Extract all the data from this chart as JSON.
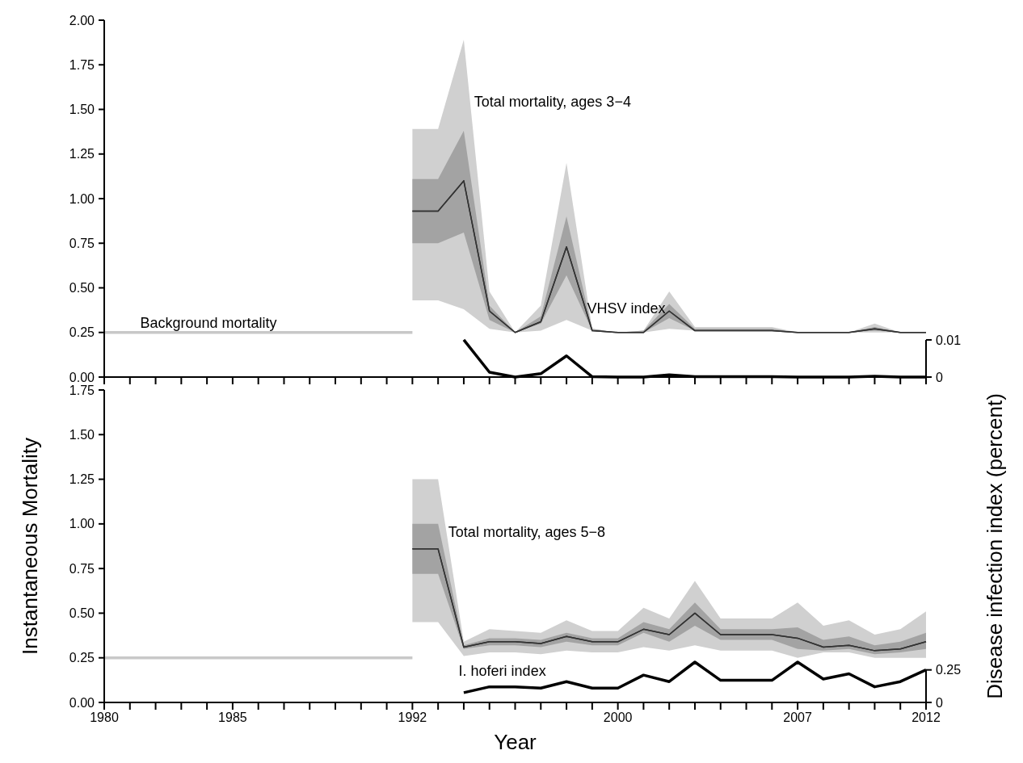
{
  "chart_data": [
    {
      "type": "line",
      "xlim": [
        1980,
        2012
      ],
      "xticks": [
        {
          "value": 1980,
          "label": null
        },
        {
          "value": 1981,
          "label": null
        },
        {
          "value": 1982,
          "label": null
        },
        {
          "value": 1983,
          "label": null
        },
        {
          "value": 1984,
          "label": null
        },
        {
          "value": 1985,
          "label": null
        },
        {
          "value": 1986,
          "label": null
        },
        {
          "value": 1987,
          "label": null
        },
        {
          "value": 1988,
          "label": null
        },
        {
          "value": 1989,
          "label": null
        },
        {
          "value": 1990,
          "label": null
        },
        {
          "value": 1991,
          "label": null
        },
        {
          "value": 1992,
          "label": null
        },
        {
          "value": 1993,
          "label": null
        },
        {
          "value": 1994,
          "label": null
        },
        {
          "value": 1995,
          "label": null
        },
        {
          "value": 1996,
          "label": null
        },
        {
          "value": 1997,
          "label": null
        },
        {
          "value": 1998,
          "label": null
        },
        {
          "value": 1999,
          "label": null
        },
        {
          "value": 2000,
          "label": null
        },
        {
          "value": 2001,
          "label": null
        },
        {
          "value": 2002,
          "label": null
        },
        {
          "value": 2003,
          "label": null
        },
        {
          "value": 2004,
          "label": null
        },
        {
          "value": 2005,
          "label": null
        },
        {
          "value": 2006,
          "label": null
        },
        {
          "value": 2007,
          "label": null
        },
        {
          "value": 2008,
          "label": null
        },
        {
          "value": 2009,
          "label": null
        },
        {
          "value": 2010,
          "label": null
        },
        {
          "value": 2011,
          "label": null
        },
        {
          "value": 2012,
          "label": null
        }
      ],
      "ylim": [
        0,
        2
      ],
      "yticks": [
        {
          "value": 0,
          "label": "0.00"
        },
        {
          "value": 0.25,
          "label": "0.25"
        },
        {
          "value": 0.5,
          "label": "0.50"
        },
        {
          "value": 0.75,
          "label": "0.75"
        },
        {
          "value": 1,
          "label": "1.00"
        },
        {
          "value": 1.25,
          "label": "1.25"
        },
        {
          "value": 1.5,
          "label": "1.50"
        },
        {
          "value": 1.75,
          "label": "1.75"
        },
        {
          "value": 2,
          "label": "2.00"
        }
      ],
      "y2lim": [
        0,
        0.096
      ],
      "y2ticks": [
        0,
        0.01
      ],
      "tick_labels": "y",
      "annotations": [
        {
          "text": "Background mortality",
          "x": 1981.4,
          "y": 0.25
        },
        {
          "text": "Total mortality, ages 3−4",
          "x": 1994.4,
          "y": 1.49
        },
        "VHSV index"
      ],
      "series": [
        {
          "color": "#c8c8c8",
          "x": [
            1980,
            1992
          ],
          "values": [
            0.25,
            0.25
          ]
        },
        {
          "color": "#333333",
          "x": [
            1992,
            1993,
            1994,
            1995,
            1996,
            1997,
            1998,
            1999,
            2000,
            2001,
            2002,
            2003,
            2004,
            2005,
            2006,
            2007,
            2008,
            2009,
            2010,
            2011,
            2012
          ],
          "values": [
            0.93,
            0.93,
            1.1,
            0.37,
            0.25,
            0.31,
            0.73,
            0.26,
            0.25,
            0.25,
            0.37,
            0.26,
            0.26,
            0.26,
            0.26,
            0.25,
            0.25,
            0.25,
            0.27,
            0.25,
            0.25
          ],
          "lower": [
            0.43,
            0.43,
            0.38,
            0.27,
            0.25,
            0.26,
            0.32,
            0.26,
            0.25,
            0.25,
            0.27,
            0.26,
            0.26,
            0.26,
            0.26,
            0.25,
            0.25,
            0.25,
            0.25,
            0.25,
            0.25
          ],
          "upper": [
            1.39,
            1.39,
            1.89,
            0.48,
            0.25,
            0.4,
            1.2,
            0.27,
            0.25,
            0.26,
            0.48,
            0.28,
            0.28,
            0.28,
            0.28,
            0.25,
            0.25,
            0.25,
            0.3,
            0.25,
            0.25
          ]
        },
        {
          "color": "#333333",
          "x": [
            1992,
            1993,
            1994,
            1995,
            1996,
            1997,
            1998,
            1999,
            2000,
            2001,
            2002,
            2003,
            2004,
            2005,
            2006,
            2007,
            2008,
            2009,
            2010,
            2011,
            2012
          ],
          "values": [
            0.93,
            0.93,
            1.1,
            0.37,
            0.25,
            0.31,
            0.73,
            0.26,
            0.25,
            0.25,
            0.37,
            0.26,
            0.26,
            0.26,
            0.26,
            0.25,
            0.25,
            0.25,
            0.27,
            0.25,
            0.25
          ],
          "lower": [
            0.75,
            0.75,
            0.81,
            0.32,
            0.25,
            0.3,
            0.57,
            0.26,
            0.25,
            0.25,
            0.33,
            0.26,
            0.26,
            0.26,
            0.26,
            0.25,
            0.25,
            0.25,
            0.26,
            0.25,
            0.25
          ],
          "upper": [
            1.11,
            1.11,
            1.38,
            0.4,
            0.25,
            0.34,
            0.9,
            0.27,
            0.25,
            0.26,
            0.41,
            0.27,
            0.27,
            0.27,
            0.27,
            0.25,
            0.25,
            0.25,
            0.28,
            0.25,
            0.25
          ]
        },
        {
          "color": "#000000",
          "axis": "y2",
          "x": [
            1994,
            1995,
            1996,
            1997,
            1998,
            1999,
            2000,
            2001,
            2002,
            2003,
            2004,
            2005,
            2006,
            2007,
            2008,
            2009,
            2010,
            2011,
            2012
          ],
          "values": [
            0.01,
            0.0013,
            0,
            0.0009,
            0.0057,
            0.0001,
            0,
            0,
            0.0006,
            0.0001,
            0.0001,
            0.0001,
            0.0001,
            0,
            0,
            0,
            0.0002,
            0,
            0
          ]
        }
      ]
    },
    {
      "type": "line",
      "xlabel": "Year",
      "ylabel": "Instantaneous Mortality",
      "y2label": "Disease infection index (percent)",
      "xlim": [
        1980,
        2012
      ],
      "xticks": [
        {
          "value": 1980,
          "label": "1980"
        },
        {
          "value": 1981,
          "label": null
        },
        {
          "value": 1982,
          "label": null
        },
        {
          "value": 1983,
          "label": null
        },
        {
          "value": 1984,
          "label": null
        },
        {
          "value": 1985,
          "label": "1985"
        },
        {
          "value": 1986,
          "label": null
        },
        {
          "value": 1987,
          "label": null
        },
        {
          "value": 1988,
          "label": null
        },
        {
          "value": 1989,
          "label": null
        },
        {
          "value": 1990,
          "label": null
        },
        {
          "value": 1991,
          "label": null
        },
        {
          "value": 1992,
          "label": "1992"
        },
        {
          "value": 1993,
          "label": null
        },
        {
          "value": 1994,
          "label": null
        },
        {
          "value": 1995,
          "label": null
        },
        {
          "value": 1996,
          "label": null
        },
        {
          "value": 1997,
          "label": null
        },
        {
          "value": 1998,
          "label": null
        },
        {
          "value": 1999,
          "label": null
        },
        {
          "value": 2000,
          "label": "2000"
        },
        {
          "value": 2001,
          "label": null
        },
        {
          "value": 2002,
          "label": null
        },
        {
          "value": 2003,
          "label": null
        },
        {
          "value": 2004,
          "label": null
        },
        {
          "value": 2005,
          "label": null
        },
        {
          "value": 2006,
          "label": null
        },
        {
          "value": 2007,
          "label": "2007"
        },
        {
          "value": 2008,
          "label": null
        },
        {
          "value": 2009,
          "label": null
        },
        {
          "value": 2010,
          "label": null
        },
        {
          "value": 2011,
          "label": null
        },
        {
          "value": 2012,
          "label": "2012"
        }
      ],
      "ylim": [
        0,
        1.75
      ],
      "yticks": [
        {
          "value": 0,
          "label": "0.00"
        },
        {
          "value": 0.25,
          "label": "0.25"
        },
        {
          "value": 0.5,
          "label": "0.50"
        },
        {
          "value": 0.75,
          "label": "0.75"
        },
        {
          "value": 1,
          "label": "1.00"
        },
        {
          "value": 1.25,
          "label": "1.25"
        },
        {
          "value": 1.5,
          "label": "1.50"
        },
        {
          "value": 1.75,
          "label": "1.75"
        }
      ],
      "y2lim": [
        0,
        2.4
      ],
      "y2ticks": [
        0,
        0.25
      ],
      "annotations": [
        {
          "text": "Total mortality, ages 5−8",
          "x": 1993.4,
          "y": 0.9
        },
        "I. hoferi index"
      ],
      "series": [
        {
          "color": "#c8c8c8",
          "x": [
            1980,
            1992
          ],
          "values": [
            0.25,
            0.25
          ]
        },
        {
          "color": "#333333",
          "x": [
            1992,
            1993,
            1994,
            1995,
            1996,
            1997,
            1998,
            1999,
            2000,
            2001,
            2002,
            2003,
            2004,
            2005,
            2006,
            2007,
            2008,
            2009,
            2010,
            2011,
            2012
          ],
          "values": [
            0.86,
            0.86,
            0.31,
            0.34,
            0.34,
            0.33,
            0.37,
            0.34,
            0.34,
            0.41,
            0.38,
            0.5,
            0.38,
            0.38,
            0.38,
            0.36,
            0.31,
            0.32,
            0.29,
            0.3,
            0.34
          ],
          "lower": [
            0.45,
            0.45,
            0.26,
            0.28,
            0.28,
            0.27,
            0.29,
            0.28,
            0.28,
            0.31,
            0.29,
            0.32,
            0.29,
            0.29,
            0.29,
            0.25,
            0.28,
            0.28,
            0.25,
            0.25,
            0.25
          ],
          "upper": [
            1.25,
            1.25,
            0.34,
            0.41,
            0.4,
            0.39,
            0.46,
            0.4,
            0.4,
            0.53,
            0.47,
            0.68,
            0.47,
            0.47,
            0.47,
            0.56,
            0.43,
            0.46,
            0.38,
            0.41,
            0.51
          ]
        },
        {
          "color": "#333333",
          "x": [
            1992,
            1993,
            1994,
            1995,
            1996,
            1997,
            1998,
            1999,
            2000,
            2001,
            2002,
            2003,
            2004,
            2005,
            2006,
            2007,
            2008,
            2009,
            2010,
            2011,
            2012
          ],
          "values": [
            0.86,
            0.86,
            0.31,
            0.34,
            0.34,
            0.33,
            0.37,
            0.34,
            0.34,
            0.41,
            0.38,
            0.5,
            0.38,
            0.38,
            0.38,
            0.36,
            0.31,
            0.32,
            0.29,
            0.3,
            0.34
          ],
          "lower": [
            0.72,
            0.72,
            0.3,
            0.32,
            0.32,
            0.31,
            0.34,
            0.32,
            0.32,
            0.39,
            0.34,
            0.43,
            0.35,
            0.35,
            0.35,
            0.3,
            0.29,
            0.3,
            0.27,
            0.28,
            0.3
          ],
          "upper": [
            1.0,
            1.0,
            0.32,
            0.36,
            0.36,
            0.35,
            0.39,
            0.36,
            0.36,
            0.45,
            0.41,
            0.56,
            0.41,
            0.41,
            0.41,
            0.42,
            0.35,
            0.37,
            0.32,
            0.34,
            0.39
          ]
        },
        {
          "color": "#000000",
          "axis": "y2",
          "x": [
            1994,
            1995,
            1996,
            1997,
            1998,
            1999,
            2000,
            2001,
            2002,
            2003,
            2004,
            2005,
            2006,
            2007,
            2008,
            2009,
            2010,
            2011,
            2012
          ],
          "values": [
            0.075,
            0.12,
            0.12,
            0.11,
            0.16,
            0.11,
            0.11,
            0.21,
            0.16,
            0.31,
            0.17,
            0.17,
            0.17,
            0.31,
            0.18,
            0.22,
            0.12,
            0.16,
            0.25
          ]
        }
      ]
    }
  ]
}
